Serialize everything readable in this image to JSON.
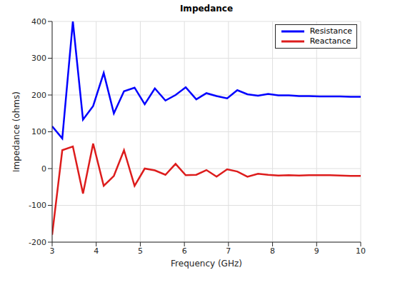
{
  "chart_data": {
    "type": "line",
    "title": "Impedance",
    "x_label": "Frequency (GHz)",
    "y_label": "Impedance (ohms)",
    "x": [
      3,
      3.23,
      3.47,
      3.7,
      3.93,
      4.17,
      4.4,
      4.63,
      4.87,
      5.1,
      5.33,
      5.57,
      5.8,
      6.03,
      6.27,
      6.5,
      6.73,
      6.97,
      7.2,
      7.43,
      7.67,
      7.9,
      8.13,
      8.37,
      8.6,
      8.83,
      9.07,
      9.3,
      9.53,
      9.77,
      10
    ],
    "series": [
      {
        "name": "Resistance",
        "color": "#0000ff",
        "values": [
          115,
          82,
          400,
          133,
          170,
          260,
          150,
          210,
          220,
          175,
          218,
          185,
          200,
          221,
          188,
          205,
          197,
          191,
          213,
          202,
          198,
          203,
          199,
          199,
          197,
          197,
          196,
          196,
          196,
          195,
          195
        ]
      },
      {
        "name": "Reactance",
        "color": "#dd1c1c",
        "values": [
          -180,
          50,
          60,
          -68,
          68,
          -47,
          -20,
          50,
          -47,
          0,
          -5,
          -17,
          13,
          -18,
          -17,
          -4,
          -22,
          -2,
          -8,
          -22,
          -14,
          -17,
          -19,
          -18,
          -19,
          -18,
          -18,
          -18,
          -19,
          -20,
          -20
        ]
      }
    ],
    "xlim": [
      3,
      10
    ],
    "xticks": [
      3,
      4,
      5,
      6,
      7,
      8,
      9,
      10
    ],
    "ylim": [
      -200,
      400
    ],
    "yticks": [
      -200,
      -100,
      0,
      100,
      200,
      300,
      400
    ],
    "grid": true,
    "legend": "northeast"
  }
}
